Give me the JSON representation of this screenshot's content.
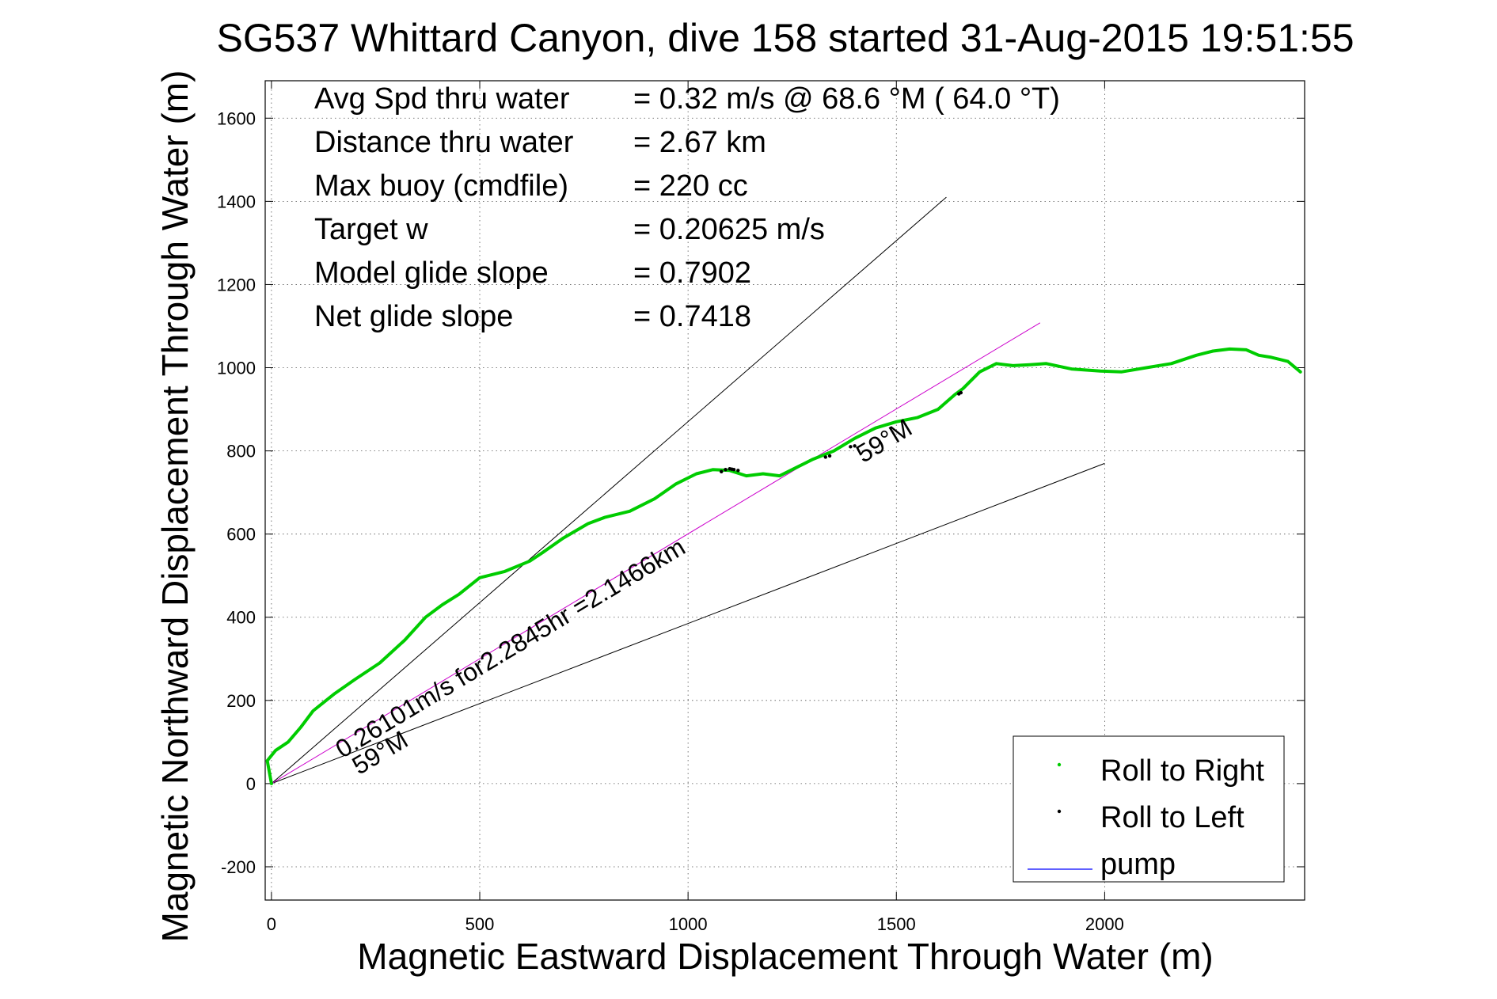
{
  "chart_data": {
    "type": "line",
    "title": "SG537 Whittard Canyon, dive 158 started 31-Aug-2015 19:51:55",
    "xlabel": "Magnetic Eastward Displacement Through Water (m)",
    "ylabel": "Magnetic Northward Displacement Through Water (m)",
    "xlim": [
      -15,
      2480
    ],
    "ylim": [
      -280,
      1690
    ],
    "xticks": [
      0,
      500,
      1000,
      1500,
      2000
    ],
    "yticks": [
      -200,
      0,
      200,
      400,
      600,
      800,
      1000,
      1200,
      1400,
      1600
    ],
    "grid": true,
    "legend_position": "bottom-right",
    "info_box": [
      {
        "label": "Avg Spd thru water",
        "value": "=  0.32 m/s @  68.6 °M ( 64.0 °T)"
      },
      {
        "label": "Distance thru water",
        "value": "=  2.67 km"
      },
      {
        "label": "Max buoy (cmdfile)",
        "value": "= 220 cc"
      },
      {
        "label": "Target w",
        "value": "= 0.20625 m/s"
      },
      {
        "label": "Model glide slope",
        "value": "= 0.7902"
      },
      {
        "label": "Net glide slope",
        "value": "= 0.7418"
      }
    ],
    "annotations": {
      "current_vector": "0.26101m/s for2.2845hr =2.1466km",
      "heading_upper": "59°M",
      "heading_lower": "59°M"
    },
    "reference_lines": [
      {
        "x": [
          0,
          1620
        ],
        "y": [
          0,
          1410
        ],
        "color": "#000000"
      },
      {
        "x": [
          0,
          2000
        ],
        "y": [
          0,
          770
        ],
        "color": "#000000"
      },
      {
        "x": [
          0,
          1845
        ],
        "y": [
          0,
          1108
        ],
        "color": "#cc00cc"
      }
    ],
    "series": [
      {
        "name": "Roll to Right",
        "color": "#00cc00",
        "x": [
          0,
          -10,
          10,
          40,
          70,
          100,
          150,
          200,
          260,
          320,
          370,
          410,
          450,
          500,
          560,
          620,
          650,
          700,
          760,
          800,
          860,
          920,
          970,
          1020,
          1060,
          1100,
          1140,
          1180,
          1220,
          1260,
          1300,
          1350,
          1400,
          1450,
          1500,
          1550,
          1600,
          1640,
          1660,
          1700,
          1740,
          1780,
          1820,
          1860,
          1920,
          1990,
          2040,
          2100,
          2160,
          2220,
          2260,
          2300,
          2340,
          2370,
          2400,
          2440,
          2470
        ],
        "y": [
          0,
          55,
          80,
          100,
          135,
          175,
          215,
          250,
          290,
          345,
          400,
          430,
          455,
          495,
          510,
          535,
          555,
          590,
          625,
          640,
          655,
          685,
          720,
          745,
          755,
          753,
          740,
          745,
          740,
          760,
          780,
          800,
          830,
          855,
          870,
          880,
          900,
          935,
          950,
          990,
          1010,
          1005,
          1007,
          1010,
          997,
          992,
          990,
          1000,
          1010,
          1030,
          1040,
          1045,
          1043,
          1030,
          1025,
          1015,
          990
        ]
      },
      {
        "name": "Roll to Left",
        "color": "#000000",
        "x": [
          1080,
          1090,
          1100,
          1105,
          1110,
          1120,
          1330,
          1340,
          1390,
          1400,
          1650,
          1655
        ],
        "y": [
          750,
          755,
          757,
          756,
          755,
          753,
          785,
          788,
          810,
          812,
          937,
          940
        ]
      },
      {
        "name": "pump",
        "color": "#0000ff",
        "x": [],
        "y": []
      }
    ]
  }
}
